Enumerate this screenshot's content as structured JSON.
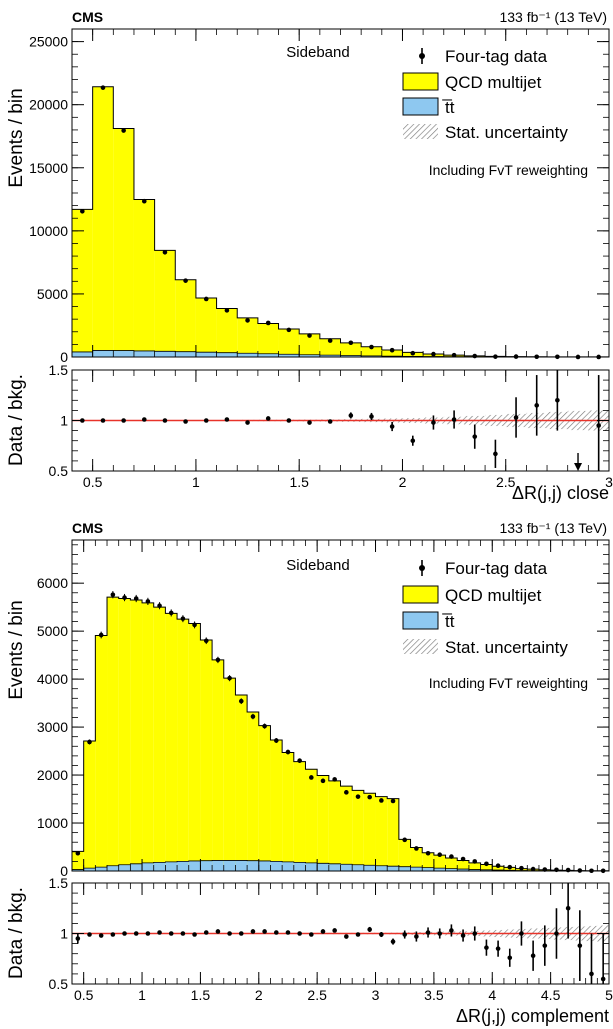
{
  "colors": {
    "qcd": "#ffff00",
    "ttbar": "#8ec8f0",
    "outline": "#000000",
    "ratio_line": "#e8332a",
    "hatch": "#8a8a8a"
  },
  "chart_data": [
    {
      "type": "bar",
      "title": "",
      "experiment_label": "CMS",
      "lumi_label": "133 fb⁻¹ (13 TeV)",
      "region_label": "Sideband",
      "annotation": "Including FvT reweighting",
      "legend": {
        "placement": "top-right",
        "entries": [
          "Four-tag data",
          "QCD multijet",
          "t̅t",
          "Stat. uncertainty"
        ]
      },
      "main": {
        "ylabel": "Events / bin",
        "ylim": [
          0,
          26000
        ],
        "yticks": [
          0,
          5000,
          10000,
          15000,
          20000,
          25000
        ],
        "ytick_labels": [
          "0",
          "5000",
          "10000",
          "15000",
          "20000",
          "25000"
        ]
      },
      "ratio": {
        "ylabel": "Data / bkg.",
        "ylim": [
          0.5,
          1.5
        ],
        "yticks": [
          0.5,
          1,
          1.5
        ],
        "ytick_labels": [
          "0.5",
          "1",
          "1.5"
        ]
      },
      "xlabel": "ΔR(j,j) close",
      "xlim": [
        0.4,
        3.0
      ],
      "xticks": [
        0.5,
        1,
        1.5,
        2,
        2.5,
        3
      ],
      "xtick_labels": [
        "0.5",
        "1",
        "1.5",
        "2",
        "2.5",
        "3"
      ],
      "bin_edges": [
        0.4,
        0.5,
        0.6,
        0.7,
        0.8,
        0.9,
        1.0,
        1.1,
        1.2,
        1.3,
        1.4,
        1.5,
        1.6,
        1.7,
        1.8,
        1.9,
        2.0,
        2.1,
        2.2,
        2.3,
        2.4,
        2.5,
        2.6,
        2.7,
        2.8,
        2.9,
        3.0
      ],
      "series": [
        {
          "name": "QCD multijet",
          "values": [
            11300,
            20900,
            17600,
            12000,
            8000,
            5700,
            4300,
            3500,
            2800,
            2400,
            2000,
            1650,
            1300,
            1000,
            720,
            480,
            320,
            200,
            120,
            70,
            40,
            25,
            15,
            10,
            6,
            4
          ]
        },
        {
          "name": "t̅t",
          "values": [
            400,
            520,
            510,
            480,
            450,
            420,
            380,
            340,
            300,
            260,
            220,
            180,
            150,
            120,
            90,
            70,
            50,
            35,
            25,
            15,
            10,
            6,
            4,
            3,
            2,
            1
          ]
        },
        {
          "name": "Four-tag data",
          "values": [
            11550,
            21350,
            17950,
            12350,
            8300,
            6050,
            4600,
            3700,
            2900,
            2700,
            2150,
            1700,
            1300,
            1130,
            790,
            540,
            300,
            230,
            145,
            75,
            28,
            32,
            19,
            15,
            4,
            3
          ]
        }
      ],
      "ratio_points": [
        {
          "x": 0.45,
          "y": 1.0,
          "err": 0.01
        },
        {
          "x": 0.55,
          "y": 1.0,
          "err": 0.01
        },
        {
          "x": 0.65,
          "y": 1.0,
          "err": 0.01
        },
        {
          "x": 0.75,
          "y": 1.01,
          "err": 0.01
        },
        {
          "x": 0.85,
          "y": 1.0,
          "err": 0.01
        },
        {
          "x": 0.95,
          "y": 0.99,
          "err": 0.01
        },
        {
          "x": 1.05,
          "y": 1.0,
          "err": 0.01
        },
        {
          "x": 1.15,
          "y": 1.01,
          "err": 0.015
        },
        {
          "x": 1.25,
          "y": 0.98,
          "err": 0.015
        },
        {
          "x": 1.35,
          "y": 1.02,
          "err": 0.015
        },
        {
          "x": 1.45,
          "y": 1.0,
          "err": 0.02
        },
        {
          "x": 1.55,
          "y": 0.98,
          "err": 0.02
        },
        {
          "x": 1.65,
          "y": 0.99,
          "err": 0.02
        },
        {
          "x": 1.75,
          "y": 1.05,
          "err": 0.03
        },
        {
          "x": 1.85,
          "y": 1.04,
          "err": 0.035
        },
        {
          "x": 1.95,
          "y": 0.94,
          "err": 0.045
        },
        {
          "x": 2.05,
          "y": 0.8,
          "err": 0.05
        },
        {
          "x": 2.15,
          "y": 0.98,
          "err": 0.07
        },
        {
          "x": 2.25,
          "y": 1.01,
          "err": 0.09
        },
        {
          "x": 2.35,
          "y": 0.84,
          "err": 0.12
        },
        {
          "x": 2.45,
          "y": 0.67,
          "err": 0.14
        },
        {
          "x": 2.55,
          "y": 1.03,
          "err": 0.2
        },
        {
          "x": 2.65,
          "y": 1.15,
          "err": 0.3
        },
        {
          "x": 2.75,
          "y": 1.2,
          "err": 0.3
        },
        {
          "x": 2.95,
          "y": 0.95,
          "err": 0.5
        }
      ],
      "ratio_arrows": [
        {
          "x": 2.85,
          "y": 0.5
        }
      ],
      "uncertainty_band": [
        0.002,
        0.002,
        0.002,
        0.003,
        0.003,
        0.004,
        0.004,
        0.005,
        0.006,
        0.007,
        0.008,
        0.009,
        0.011,
        0.013,
        0.016,
        0.02,
        0.024,
        0.03,
        0.037,
        0.045,
        0.055,
        0.065,
        0.075,
        0.085,
        0.095,
        0.1
      ]
    },
    {
      "type": "bar",
      "title": "",
      "experiment_label": "CMS",
      "lumi_label": "133 fb⁻¹ (13 TeV)",
      "region_label": "Sideband",
      "annotation": "Including FvT reweighting",
      "legend": {
        "placement": "top-right",
        "entries": [
          "Four-tag data",
          "QCD multijet",
          "t̅t",
          "Stat. uncertainty"
        ]
      },
      "main": {
        "ylabel": "Events / bin",
        "ylim": [
          0,
          6900
        ],
        "yticks": [
          0,
          1000,
          2000,
          3000,
          4000,
          5000,
          6000
        ],
        "ytick_labels": [
          "0",
          "1000",
          "2000",
          "3000",
          "4000",
          "5000",
          "6000"
        ]
      },
      "ratio": {
        "ylabel": "Data / bkg.",
        "ylim": [
          0.5,
          1.5
        ],
        "yticks": [
          0.5,
          1,
          1.5
        ],
        "ytick_labels": [
          "0.5",
          "1",
          "1.5"
        ]
      },
      "xlabel": "ΔR(j,j) complement",
      "xlim": [
        0.4,
        5.0
      ],
      "xticks": [
        0.5,
        1,
        1.5,
        2,
        2.5,
        3,
        3.5,
        4,
        4.5,
        5
      ],
      "xtick_labels": [
        "0.5",
        "1",
        "1.5",
        "2",
        "2.5",
        "3",
        "3.5",
        "4",
        "4.5",
        "5"
      ],
      "bin_edges": [
        0.4,
        0.5,
        0.6,
        0.7,
        0.8,
        0.9,
        1.0,
        1.1,
        1.2,
        1.3,
        1.4,
        1.5,
        1.6,
        1.7,
        1.8,
        1.9,
        2.0,
        2.1,
        2.2,
        2.3,
        2.4,
        2.5,
        2.6,
        2.7,
        2.8,
        2.9,
        3.0,
        3.1,
        3.2,
        3.3,
        3.4,
        3.5,
        3.6,
        3.7,
        3.8,
        3.9,
        4.0,
        4.1,
        4.2,
        4.3,
        4.4,
        4.5,
        4.6,
        4.7,
        4.8,
        4.9,
        5.0
      ],
      "series": [
        {
          "name": "QCD multijet",
          "values": [
            380,
            2650,
            4830,
            5600,
            5550,
            5500,
            5420,
            5320,
            5180,
            5050,
            4950,
            4600,
            4180,
            3800,
            3450,
            3100,
            2820,
            2530,
            2280,
            2100,
            1950,
            1830,
            1730,
            1630,
            1550,
            1500,
            1440,
            1410,
            570,
            410,
            310,
            270,
            220,
            180,
            140,
            110,
            80,
            60,
            40,
            30,
            20,
            15,
            10,
            6,
            4,
            3
          ]
        },
        {
          "name": "t̅t",
          "values": [
            30,
            60,
            80,
            110,
            130,
            150,
            170,
            180,
            190,
            200,
            210,
            215,
            220,
            220,
            220,
            215,
            210,
            200,
            190,
            180,
            170,
            160,
            150,
            140,
            130,
            120,
            110,
            100,
            90,
            80,
            70,
            60,
            50,
            40,
            30,
            25,
            20,
            15,
            10,
            8,
            6,
            4,
            3,
            2,
            1,
            1
          ]
        },
        {
          "name": "Four-tag data",
          "values": [
            370,
            2690,
            4920,
            5760,
            5700,
            5680,
            5620,
            5530,
            5380,
            5260,
            5130,
            4800,
            4400,
            4020,
            3540,
            3220,
            3020,
            2720,
            2480,
            2300,
            1950,
            1880,
            1910,
            1640,
            1550,
            1540,
            1470,
            1460,
            650,
            470,
            370,
            340,
            300,
            250,
            200,
            150,
            110,
            80,
            60,
            40,
            30,
            25,
            20,
            10,
            5,
            4
          ]
        }
      ],
      "ratio_points": [
        {
          "x": 0.45,
          "y": 0.95,
          "err": 0.05
        },
        {
          "x": 0.55,
          "y": 0.99,
          "err": 0.02
        },
        {
          "x": 0.65,
          "y": 0.98,
          "err": 0.015
        },
        {
          "x": 0.75,
          "y": 0.99,
          "err": 0.015
        },
        {
          "x": 0.85,
          "y": 1.0,
          "err": 0.015
        },
        {
          "x": 0.95,
          "y": 1.0,
          "err": 0.015
        },
        {
          "x": 1.05,
          "y": 1.0,
          "err": 0.015
        },
        {
          "x": 1.15,
          "y": 1.01,
          "err": 0.015
        },
        {
          "x": 1.25,
          "y": 1.0,
          "err": 0.015
        },
        {
          "x": 1.35,
          "y": 1.0,
          "err": 0.015
        },
        {
          "x": 1.45,
          "y": 0.99,
          "err": 0.015
        },
        {
          "x": 1.55,
          "y": 1.01,
          "err": 0.015
        },
        {
          "x": 1.65,
          "y": 1.02,
          "err": 0.015
        },
        {
          "x": 1.75,
          "y": 1.0,
          "err": 0.015
        },
        {
          "x": 1.85,
          "y": 1.0,
          "err": 0.015
        },
        {
          "x": 1.95,
          "y": 1.02,
          "err": 0.02
        },
        {
          "x": 2.05,
          "y": 1.02,
          "err": 0.02
        },
        {
          "x": 2.15,
          "y": 1.01,
          "err": 0.02
        },
        {
          "x": 2.25,
          "y": 1.01,
          "err": 0.02
        },
        {
          "x": 2.35,
          "y": 1.0,
          "err": 0.02
        },
        {
          "x": 2.45,
          "y": 0.99,
          "err": 0.02
        },
        {
          "x": 2.55,
          "y": 1.02,
          "err": 0.02
        },
        {
          "x": 2.65,
          "y": 1.03,
          "err": 0.02
        },
        {
          "x": 2.75,
          "y": 0.97,
          "err": 0.02
        },
        {
          "x": 2.85,
          "y": 0.99,
          "err": 0.02
        },
        {
          "x": 2.95,
          "y": 1.04,
          "err": 0.025
        },
        {
          "x": 3.05,
          "y": 0.99,
          "err": 0.025
        },
        {
          "x": 3.15,
          "y": 0.92,
          "err": 0.03
        },
        {
          "x": 3.25,
          "y": 0.99,
          "err": 0.04
        },
        {
          "x": 3.35,
          "y": 0.97,
          "err": 0.05
        },
        {
          "x": 3.45,
          "y": 1.01,
          "err": 0.05
        },
        {
          "x": 3.55,
          "y": 1.0,
          "err": 0.05
        },
        {
          "x": 3.65,
          "y": 1.03,
          "err": 0.06
        },
        {
          "x": 3.75,
          "y": 0.98,
          "err": 0.06
        },
        {
          "x": 3.85,
          "y": 1.0,
          "err": 0.07
        },
        {
          "x": 3.95,
          "y": 0.86,
          "err": 0.08
        },
        {
          "x": 4.05,
          "y": 0.85,
          "err": 0.08
        },
        {
          "x": 4.15,
          "y": 0.76,
          "err": 0.09
        },
        {
          "x": 4.25,
          "y": 1.0,
          "err": 0.12
        },
        {
          "x": 4.35,
          "y": 0.78,
          "err": 0.15
        },
        {
          "x": 4.45,
          "y": 0.88,
          "err": 0.2
        },
        {
          "x": 4.55,
          "y": 1.0,
          "err": 0.25
        },
        {
          "x": 4.65,
          "y": 1.25,
          "err": 0.3
        },
        {
          "x": 4.75,
          "y": 0.88,
          "err": 0.35
        },
        {
          "x": 4.85,
          "y": 0.6,
          "err": 0.4
        },
        {
          "x": 4.95,
          "y": 0.55,
          "err": 0.45
        }
      ],
      "ratio_arrows": [],
      "uncertainty_band": [
        0.005,
        0.004,
        0.003,
        0.003,
        0.003,
        0.003,
        0.003,
        0.003,
        0.003,
        0.003,
        0.003,
        0.003,
        0.004,
        0.004,
        0.004,
        0.004,
        0.004,
        0.005,
        0.005,
        0.005,
        0.005,
        0.006,
        0.006,
        0.006,
        0.007,
        0.007,
        0.007,
        0.008,
        0.012,
        0.014,
        0.016,
        0.018,
        0.02,
        0.022,
        0.025,
        0.03,
        0.035,
        0.04,
        0.045,
        0.05,
        0.055,
        0.06,
        0.065,
        0.07,
        0.075,
        0.08
      ]
    }
  ]
}
